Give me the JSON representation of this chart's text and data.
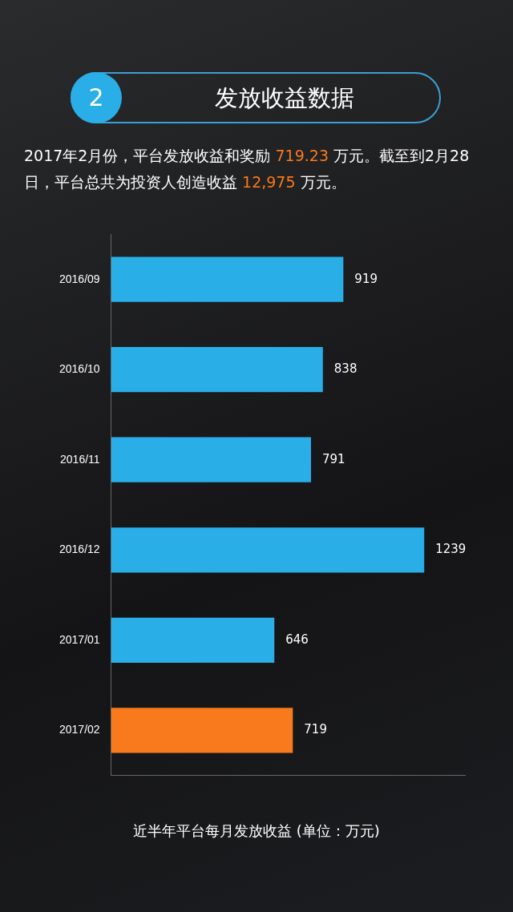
{
  "chart_data": {
    "type": "bar",
    "orientation": "horizontal",
    "title": "发放收益数据",
    "subtitle": "2017年2月份，平台发放收益和奖励 719.23 万元。截至到2月28日，平台总共为投资人创造收益 12,975 万元。",
    "annotations": [
      "2"
    ],
    "categories": [
      "2016/09",
      "2016/10",
      "2016/11",
      "2016/12",
      "2017/01",
      "2017/02"
    ],
    "values": [
      919,
      838,
      791,
      1239,
      646,
      719
    ],
    "colors": [
      "#29aee8",
      "#29aee8",
      "#29aee8",
      "#29aee8",
      "#29aee8",
      "#f97a1c"
    ],
    "xlabel": "近半年平台每月发放收益 (单位：万元)",
    "data_labels": true,
    "tick_labels": "y",
    "grid": false,
    "legend": false
  }
}
